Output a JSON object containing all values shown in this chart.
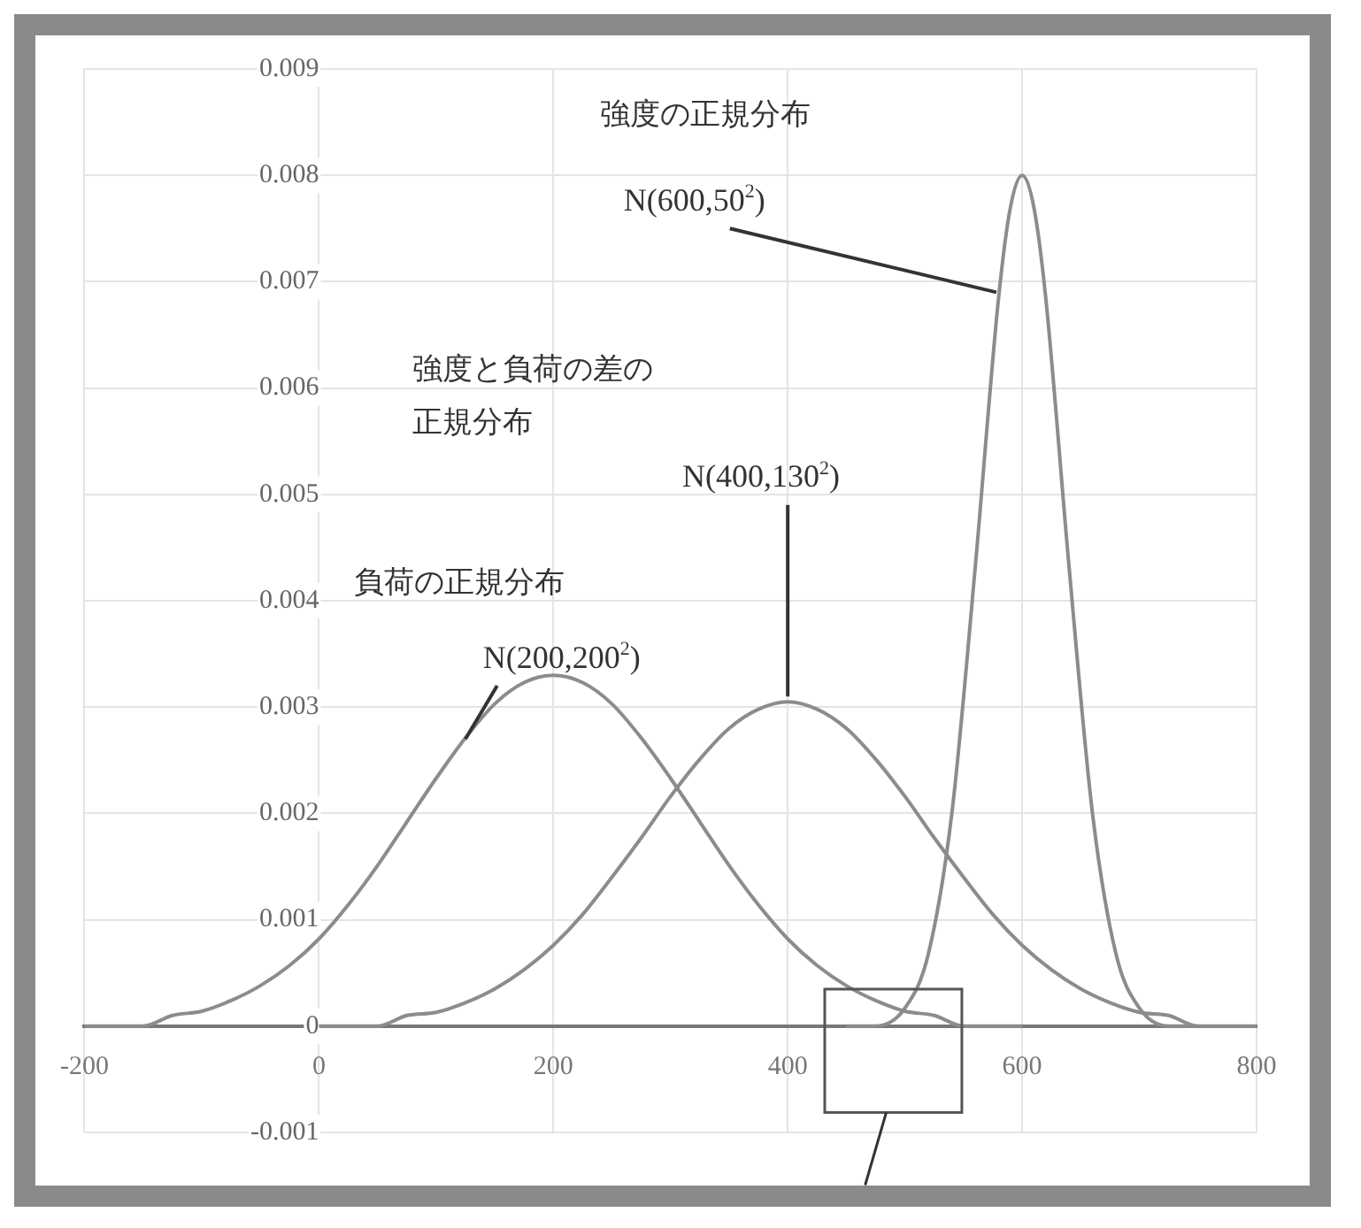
{
  "chart_data": {
    "type": "line",
    "xlim": [
      -200,
      800
    ],
    "ylim": [
      -0.001,
      0.009
    ],
    "xticks": [
      -200,
      0,
      200,
      400,
      600,
      800
    ],
    "yticks": [
      -0.001,
      0,
      0.001,
      0.002,
      0.003,
      0.004,
      0.005,
      0.006,
      0.007,
      0.008,
      0.009
    ],
    "grid": true,
    "marker": "none",
    "line_style": "solid",
    "series": [
      {
        "color": "#8c8c8c",
        "x": [
          -200,
          -175,
          -150,
          -125,
          -100,
          -75,
          -50,
          -25,
          0,
          25,
          50,
          75,
          100,
          125,
          150,
          175,
          200,
          225,
          250,
          275,
          300,
          325,
          350,
          375,
          400,
          425,
          450,
          475,
          500,
          525,
          550,
          575,
          600
        ],
        "values": [
          0,
          0,
          0,
          0.0001,
          0.00014,
          0.00024,
          0.00038,
          0.00057,
          0.00082,
          0.00114,
          0.00151,
          0.00192,
          0.00233,
          0.00271,
          0.00303,
          0.00323,
          0.0033,
          0.00323,
          0.00303,
          0.00271,
          0.00233,
          0.00192,
          0.00151,
          0.00114,
          0.00082,
          0.00057,
          0.00038,
          0.00024,
          0.00014,
          0.0001,
          0,
          0,
          0
        ]
      },
      {
        "color": "#8c8c8c",
        "x": [
          0,
          25,
          50,
          75,
          100,
          125,
          150,
          175,
          200,
          225,
          250,
          275,
          300,
          325,
          350,
          375,
          400,
          425,
          450,
          475,
          500,
          525,
          550,
          575,
          600,
          625,
          650,
          675,
          700,
          725,
          750,
          775,
          800
        ],
        "values": [
          0,
          0,
          0,
          0.0001,
          0.00013,
          0.00022,
          0.00035,
          0.00053,
          0.00076,
          0.00105,
          0.0014,
          0.00177,
          0.00216,
          0.00251,
          0.0028,
          0.00298,
          0.00305,
          0.00298,
          0.0028,
          0.00251,
          0.00216,
          0.00177,
          0.0014,
          0.00105,
          0.00076,
          0.00053,
          0.00035,
          0.00022,
          0.00013,
          0.0001,
          0,
          0,
          0
        ]
      },
      {
        "color": "#8c8c8c",
        "x": [
          450,
          475,
          500,
          520,
          540,
          560,
          580,
          590,
          600,
          610,
          620,
          640,
          660,
          680,
          700,
          725,
          750
        ],
        "values": [
          0,
          0,
          0.00017,
          0.00068,
          0.002,
          0.00432,
          0.00686,
          0.0077,
          0.008,
          0.0077,
          0.00686,
          0.00432,
          0.002,
          0.00068,
          0.00017,
          0,
          0
        ]
      }
    ],
    "annotations": [
      "強度の正規分布",
      {
        "text": "N(600,50$^{2}$)",
        "x": 578,
        "y": 0.0069
      },
      "強度と負荷の差の",
      "正規分布",
      {
        "text": "N(400,130$^{2}$)",
        "x": 400,
        "y": 0.0031
      },
      "負荷の正規分布",
      {
        "text": "N(200,200$^{2}$)",
        "x": 125,
        "y": 0.0027
      }
    ]
  }
}
